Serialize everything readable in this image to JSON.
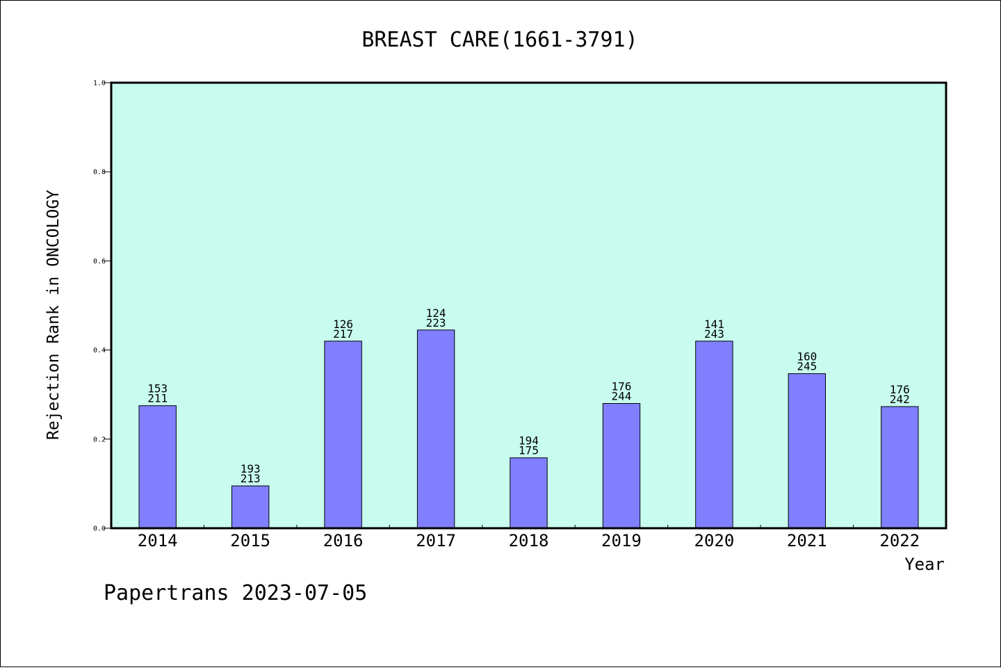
{
  "chart_data": {
    "type": "bar",
    "title": "BREAST CARE(1661-3791)",
    "xlabel": "Year",
    "ylabel": "Rejection Rank in ONCOLOGY",
    "ylim": [
      0,
      1.0
    ],
    "yticks": [
      "0.0",
      "0.2",
      "0.4",
      "0.6",
      "0.8",
      "1.0"
    ],
    "categories": [
      "2014",
      "2015",
      "2016",
      "2017",
      "2018",
      "2019",
      "2020",
      "2021",
      "2022"
    ],
    "values": [
      0.275,
      0.095,
      0.42,
      0.445,
      0.158,
      0.28,
      0.42,
      0.347,
      0.273
    ],
    "labels_top": [
      "153",
      "193",
      "126",
      "124",
      "194",
      "176",
      "141",
      "160",
      "176"
    ],
    "labels_bottom": [
      "211",
      "213",
      "217",
      "223",
      "175",
      "244",
      "243",
      "245",
      "242"
    ],
    "bar_color": "#8080ff",
    "plot_background": "#c8fcee",
    "grid": false
  },
  "footer": "Papertrans 2023-07-05"
}
